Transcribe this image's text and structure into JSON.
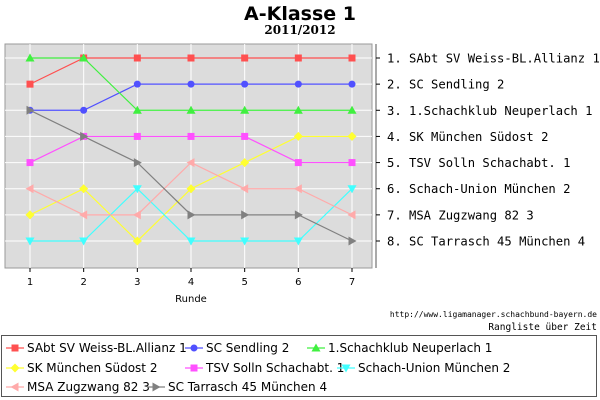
{
  "title": "A-Klasse 1",
  "subtitle": "2011/2012",
  "url": "http://www.ligamanager.schachbund-bayern.de",
  "caption": "Rangliste über Zeit",
  "colors": {
    "plot_background": "#dcdcdc",
    "grid": "#ffffff"
  },
  "chart_data": {
    "type": "line",
    "xlabel": "Runde",
    "x": [
      1,
      2,
      3,
      4,
      5,
      6,
      7
    ],
    "xlim": [
      1,
      7
    ],
    "ylim": [
      1,
      8
    ],
    "y_inverted": true,
    "grid": true,
    "legend_position": "bottom",
    "right_labels": [
      "1. SAbt SV Weiss-BL.Allianz 1",
      "2. SC Sendling 2",
      "3. 1.Schachklub Neuperlach 1",
      "4. SK München Südost 2",
      "5. TSV Solln Schachabt. 1",
      "6. Schach-Union München 2",
      "7. MSA Zugzwang 82 3",
      "8. SC Tarrasch 45 München 4"
    ],
    "series": [
      {
        "name": "SAbt SV Weiss-BL.Allianz 1",
        "color": "#ff5050",
        "marker": "square",
        "values": [
          2,
          1,
          1,
          1,
          1,
          1,
          1
        ]
      },
      {
        "name": "SC Sendling 2",
        "color": "#5050ff",
        "marker": "circle",
        "values": [
          3,
          3,
          2,
          2,
          2,
          2,
          2
        ]
      },
      {
        "name": "1.Schachklub Neuperlach 1",
        "color": "#40f040",
        "marker": "triangle-up",
        "values": [
          1,
          1,
          3,
          3,
          3,
          3,
          3
        ]
      },
      {
        "name": "SK München Südost 2",
        "color": "#ffff30",
        "marker": "diamond",
        "values": [
          7,
          6,
          8,
          6,
          5,
          4,
          4
        ]
      },
      {
        "name": "TSV Solln Schachabt. 1",
        "color": "#ff50ff",
        "marker": "square",
        "values": [
          5,
          4,
          4,
          4,
          4,
          5,
          5
        ]
      },
      {
        "name": "Schach-Union München 2",
        "color": "#40ffff",
        "marker": "triangle-down",
        "values": [
          8,
          8,
          6,
          8,
          8,
          8,
          6
        ]
      },
      {
        "name": "MSA Zugzwang 82 3",
        "color": "#ffaaaa",
        "marker": "triangle-left",
        "values": [
          6,
          7,
          7,
          5,
          6,
          6,
          7
        ]
      },
      {
        "name": "SC Tarrasch 45 München 4",
        "color": "#808080",
        "marker": "triangle-right",
        "values": [
          3,
          4,
          5,
          7,
          7,
          7,
          8
        ]
      }
    ]
  }
}
